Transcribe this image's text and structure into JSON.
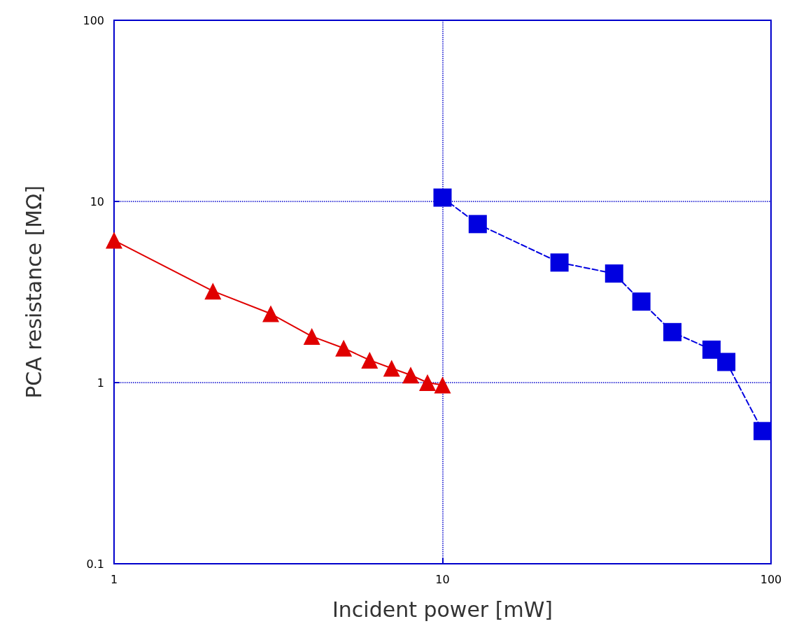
{
  "chart_data": {
    "type": "line",
    "xlabel": "Incident power [mW]",
    "ylabel": "PCA resistance [MΩ]",
    "log": "xy",
    "xlim": [
      1,
      100
    ],
    "xticks": [
      1,
      10,
      100
    ],
    "ylim": [
      0.1,
      100
    ],
    "yticks": [
      0.1,
      1,
      10,
      100
    ],
    "grid": true,
    "series": [
      {
        "color": "#e00000",
        "marker": "triangle",
        "line_style": "solid",
        "x": [
          1,
          2,
          3,
          4,
          5,
          6,
          7,
          8,
          9,
          10
        ],
        "values": [
          6.1,
          3.2,
          2.4,
          1.8,
          1.55,
          1.33,
          1.2,
          1.1,
          1.0,
          0.97
        ]
      },
      {
        "color": "#0000e0",
        "marker": "square",
        "line_style": "dashed",
        "x": [
          10,
          12.8,
          22.7,
          33.3,
          40.3,
          50.1,
          65.9,
          73.1,
          94.3
        ],
        "values": [
          10.5,
          7.5,
          4.6,
          4.0,
          2.8,
          1.9,
          1.52,
          1.3,
          0.54
        ]
      }
    ]
  }
}
